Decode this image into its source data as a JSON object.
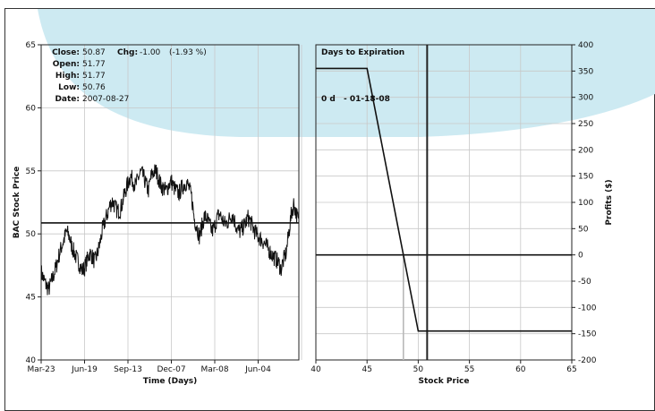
{
  "colors": {
    "background": "#ffffff",
    "highlight_band": "#cdeaf2",
    "line": "#111111",
    "grid": "#c8c8c8",
    "breakeven_marker": "#b9b9b9"
  },
  "chart_data": [
    {
      "type": "line",
      "ylabel": "BAC Stock Price",
      "xlabel": "Time (Days)",
      "ylim": [
        40,
        65
      ],
      "yticks": [
        40,
        45,
        50,
        55,
        60,
        65
      ],
      "xticks": [
        "Mar-23",
        "Jun-19",
        "Sep-13",
        "Dec-07",
        "Mar-08",
        "Jun-04"
      ],
      "grid": true,
      "reference_line": 50.87,
      "series": [
        {
          "values": [
            47.0,
            46.4,
            45.9,
            45.6,
            46.2,
            46.8,
            47.5,
            48.3,
            49.0,
            49.6,
            50.2,
            49.8,
            49.0,
            48.5,
            48.0,
            47.6,
            47.1,
            47.3,
            47.9,
            48.5,
            48.2,
            47.8,
            48.4,
            49.2,
            50.3,
            51.0,
            51.6,
            52.3,
            52.6,
            52.1,
            51.8,
            51.9,
            52.6,
            53.4,
            54.0,
            54.6,
            54.2,
            53.8,
            54.4,
            54.9,
            54.6,
            54.0,
            53.4,
            54.5,
            54.9,
            55.0,
            54.4,
            53.8,
            53.6,
            53.4,
            53.9,
            54.2,
            53.7,
            53.4,
            53.2,
            53.6,
            53.9,
            54.1,
            53.6,
            52.9,
            51.2,
            50.6,
            49.8,
            50.6,
            51.4,
            51.2,
            50.7,
            50.2,
            50.6,
            51.3,
            51.6,
            51.1,
            50.8,
            50.9,
            51.3,
            51.6,
            50.9,
            50.3,
            50.2,
            50.5,
            50.8,
            51.3,
            51.0,
            50.5,
            50.1,
            49.8,
            49.6,
            49.4,
            49.1,
            48.8,
            48.5,
            48.2,
            48.0,
            47.7,
            47.2,
            47.9,
            48.5,
            50.0,
            51.5,
            52.4,
            51.6,
            50.9
          ]
        }
      ],
      "info": {
        "close_label": "Close:",
        "close_value": "50.87",
        "chg_label": "Chg:",
        "chg_value": "-1.00",
        "chg_pct": "(-1.93 %)",
        "open_label": "Open:",
        "open_value": "51.77",
        "high_label": "High:",
        "high_value": "51.77",
        "low_label": "Low:",
        "low_value": "50.76",
        "date_label": "Date:",
        "date_value": "2007-08-27"
      }
    },
    {
      "type": "line",
      "title": "Days to Expiration",
      "xlabel": "Stock Price",
      "ylabel": "Profits ($)",
      "xlim": [
        40,
        65
      ],
      "ylim": [
        -200,
        400
      ],
      "xticks": [
        40,
        45,
        50,
        55,
        60,
        65
      ],
      "yticks": [
        -200,
        -150,
        -100,
        -50,
        0,
        50,
        100,
        150,
        200,
        250,
        300,
        350,
        400
      ],
      "grid": true,
      "series": [
        {
          "name": "0 d - 01-18-08",
          "x": [
            40,
            45,
            50,
            65
          ],
          "y": [
            355,
            355,
            -145,
            -145
          ]
        }
      ],
      "zero_line": 0,
      "current_price": 50.87,
      "breakeven": 48.55,
      "legend_entry": {
        "days": "0 d",
        "date": "- 01-18-08"
      }
    }
  ]
}
